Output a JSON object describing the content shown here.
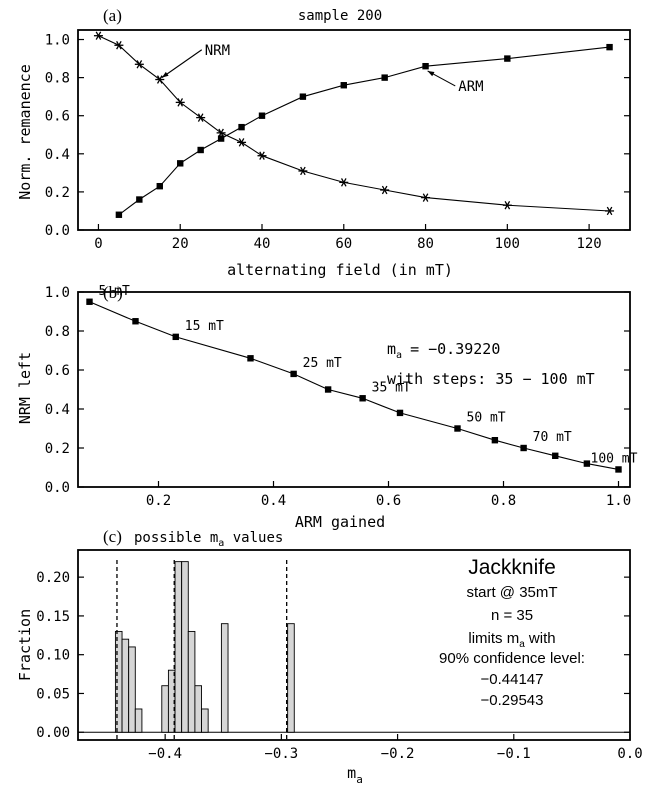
{
  "panel_tags": {
    "a": "(a)",
    "b": "(b)",
    "c": "(c)"
  },
  "colors": {
    "ink": "#000000",
    "bar_fill": "#d6d6d6"
  },
  "chart_data": [
    {
      "type": "line",
      "title": "sample 200",
      "xlabel": "alternating field (in mT)",
      "ylabel": "Norm. remanence",
      "xlim": [
        -5,
        130
      ],
      "ylim": [
        0.0,
        1.05
      ],
      "xticks": [
        0,
        20,
        40,
        60,
        80,
        100,
        120
      ],
      "yticks": [
        0.0,
        0.2,
        0.4,
        0.6,
        0.8,
        1.0
      ],
      "grid": false,
      "series": [
        {
          "name": "NRM",
          "marker": "asterisk",
          "x": [
            0,
            5,
            10,
            15,
            20,
            25,
            30,
            35,
            40,
            50,
            60,
            70,
            80,
            100,
            125
          ],
          "y": [
            1.02,
            0.97,
            0.87,
            0.79,
            0.67,
            0.59,
            0.51,
            0.46,
            0.39,
            0.31,
            0.25,
            0.21,
            0.17,
            0.13,
            0.1
          ]
        },
        {
          "name": "ARM",
          "marker": "square",
          "x": [
            5,
            10,
            15,
            20,
            25,
            30,
            35,
            40,
            50,
            60,
            70,
            80,
            100,
            125
          ],
          "y": [
            0.08,
            0.16,
            0.23,
            0.35,
            0.42,
            0.48,
            0.54,
            0.6,
            0.7,
            0.76,
            0.8,
            0.86,
            0.9,
            0.96
          ]
        }
      ],
      "annotations": [
        {
          "text": "NRM",
          "x": 26,
          "y": 0.92,
          "arrow_to": [
            15.5,
            0.8
          ]
        },
        {
          "text": "ARM",
          "x": 88,
          "y": 0.73,
          "arrow_to": [
            80.5,
            0.835
          ]
        }
      ]
    },
    {
      "type": "line",
      "xlabel": "ARM gained",
      "ylabel": "NRM left",
      "xlim": [
        0.06,
        1.02
      ],
      "ylim": [
        0.0,
        1.0
      ],
      "xticks": [
        0.2,
        0.4,
        0.6,
        0.8,
        1.0
      ],
      "yticks": [
        0.0,
        0.2,
        0.4,
        0.6,
        0.8,
        1.0
      ],
      "grid": false,
      "series": [
        {
          "marker": "square",
          "x": [
            0.08,
            0.16,
            0.23,
            0.36,
            0.435,
            0.495,
            0.555,
            0.62,
            0.72,
            0.785,
            0.835,
            0.89,
            0.945,
            1.0
          ],
          "y": [
            0.95,
            0.85,
            0.77,
            0.66,
            0.58,
            0.5,
            0.455,
            0.38,
            0.3,
            0.24,
            0.2,
            0.16,
            0.12,
            0.09
          ]
        }
      ],
      "point_labels": [
        {
          "text": "5 mT",
          "x": 0.08,
          "y": 0.95
        },
        {
          "text": "15 mT",
          "x": 0.23,
          "y": 0.77
        },
        {
          "text": "25 mT",
          "x": 0.435,
          "y": 0.58
        },
        {
          "text": "35 mT",
          "x": 0.555,
          "y": 0.455
        },
        {
          "text": "50 mT",
          "x": 0.72,
          "y": 0.3
        },
        {
          "text": "70 mT",
          "x": 0.835,
          "y": 0.2
        },
        {
          "text": "100 mT",
          "x": 1.0,
          "y": 0.09
        }
      ],
      "info": {
        "slope_label": "m",
        "slope_sub": "a",
        "slope_value": "=  −0.39220",
        "steps": "with steps: 35  −  100 mT"
      }
    },
    {
      "type": "bar",
      "title_main": "possible m",
      "title_sub": "a",
      "title_rest": " values",
      "xlabel": "m",
      "xlabel_sub": "a",
      "ylabel": "Fraction",
      "xlim": [
        -0.475,
        0.0
      ],
      "ylim": [
        -0.01,
        0.235
      ],
      "xticks": [
        "-0.4",
        "-0.3",
        "-0.2",
        "-0.1",
        "0.0"
      ],
      "xtick_values": [
        -0.4,
        -0.3,
        -0.2,
        -0.1,
        0.0
      ],
      "yticks": [
        0.0,
        0.05,
        0.1,
        0.15,
        0.2
      ],
      "bin_width": 0.0057,
      "bin_lefts": [
        -0.4428,
        -0.4371,
        -0.4314,
        -0.4257,
        -0.4029,
        -0.3972,
        -0.3915,
        -0.3858,
        -0.3801,
        -0.3744,
        -0.3687,
        -0.3516,
        -0.2946
      ],
      "values": [
        0.13,
        0.12,
        0.11,
        0.03,
        0.06,
        0.08,
        0.22,
        0.22,
        0.13,
        0.06,
        0.03,
        0.14,
        0.14
      ],
      "dashed_lines": [
        -0.44147,
        -0.3922,
        -0.29543
      ],
      "info": {
        "heading": "Jackknife",
        "start": "start @ 35mT",
        "n": "n = 35",
        "limits_a": "limits m",
        "limits_sub": "a",
        "limits_b": " with",
        "conf": "90% confidence level:",
        "lower": "−0.44147",
        "upper": "−0.29543"
      }
    }
  ]
}
